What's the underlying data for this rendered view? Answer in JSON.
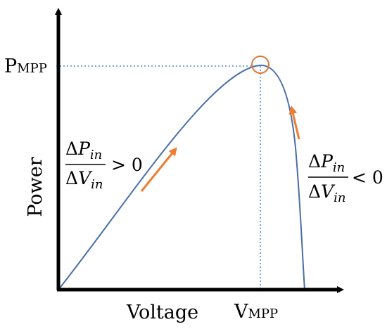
{
  "figure": {
    "y_axis_label": "Power",
    "x_axis_label": "Voltage",
    "p_mpp": {
      "main": "P",
      "sub": "MPP"
    },
    "v_mpp": {
      "main": "V",
      "sub": "MPP"
    },
    "left_condition": {
      "numerator": {
        "delta": "Δ",
        "var": "P",
        "sub": "in"
      },
      "denominator": {
        "delta": "Δ",
        "var": "V",
        "sub": "in"
      },
      "relation": "> 0"
    },
    "right_condition": {
      "numerator": {
        "delta": "Δ",
        "var": "P",
        "sub": "in"
      },
      "denominator": {
        "delta": "Δ",
        "var": "V",
        "sub": "in"
      },
      "relation": "< 0"
    }
  },
  "colors": {
    "curve": "#4a6fa5",
    "guide": "#2e75b6",
    "arrow": "#ed7d31",
    "marker": "#e07b39",
    "axis": "#000000"
  }
}
